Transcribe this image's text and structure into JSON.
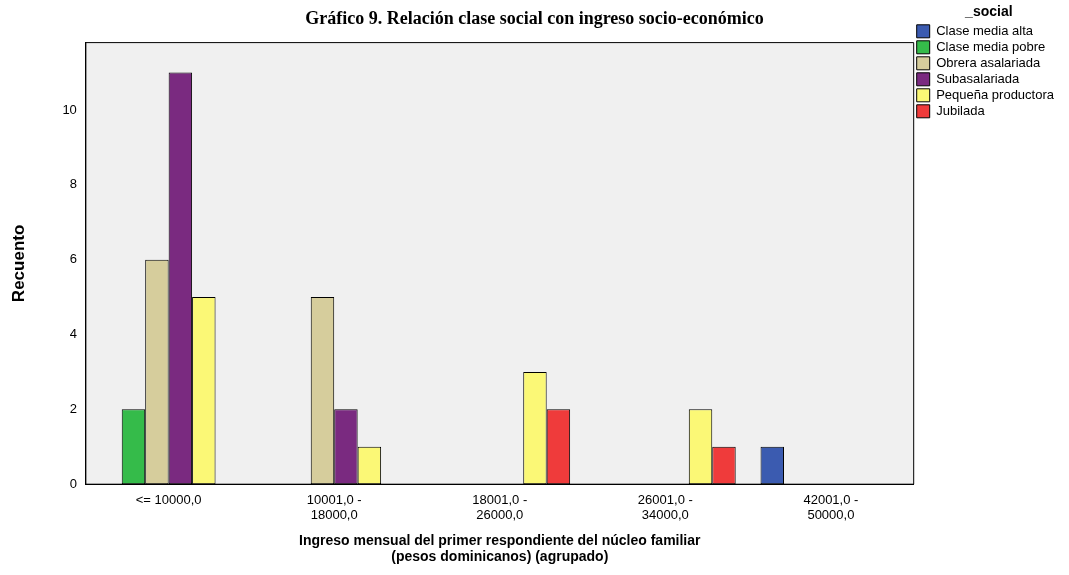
{
  "chart_data": {
    "type": "bar",
    "title": "Gráfico 9. Relación clase social con ingreso socio-económico",
    "xlabel": "Ingreso mensual del primer respondiente del núcleo familiar (pesos dominicanos) (agrupado)",
    "ylabel": "Recuento",
    "legend_title": "_social",
    "categories": [
      "<= 10000,0",
      "10001,0 - 18000,0",
      "18001,0 - 26000,0",
      "26001,0 - 34000,0",
      "42001,0 - 50000,0"
    ],
    "series": [
      {
        "name": "Clase media alta",
        "color": "#3b5bb0",
        "values": [
          null,
          null,
          null,
          null,
          1
        ]
      },
      {
        "name": "Clase media pobre",
        "color": "#35bb4a",
        "values": [
          2,
          null,
          null,
          null,
          null
        ]
      },
      {
        "name": "Obrera asalariada",
        "color": "#d6cd9c",
        "values": [
          6,
          5,
          null,
          null,
          null
        ]
      },
      {
        "name": "Subasalariada",
        "color": "#7a2a80",
        "values": [
          11,
          2,
          null,
          null,
          null
        ]
      },
      {
        "name": "Pequeña productora",
        "color": "#fbf876",
        "values": [
          5,
          1,
          3,
          2,
          null
        ]
      },
      {
        "name": "Jubilada",
        "color": "#ef3b3b",
        "values": [
          null,
          null,
          2,
          1,
          null
        ]
      }
    ],
    "ylim": [
      0,
      11.8
    ],
    "yticks": [
      0,
      2,
      4,
      6,
      8,
      10
    ],
    "grid": false,
    "legend": "top right"
  }
}
